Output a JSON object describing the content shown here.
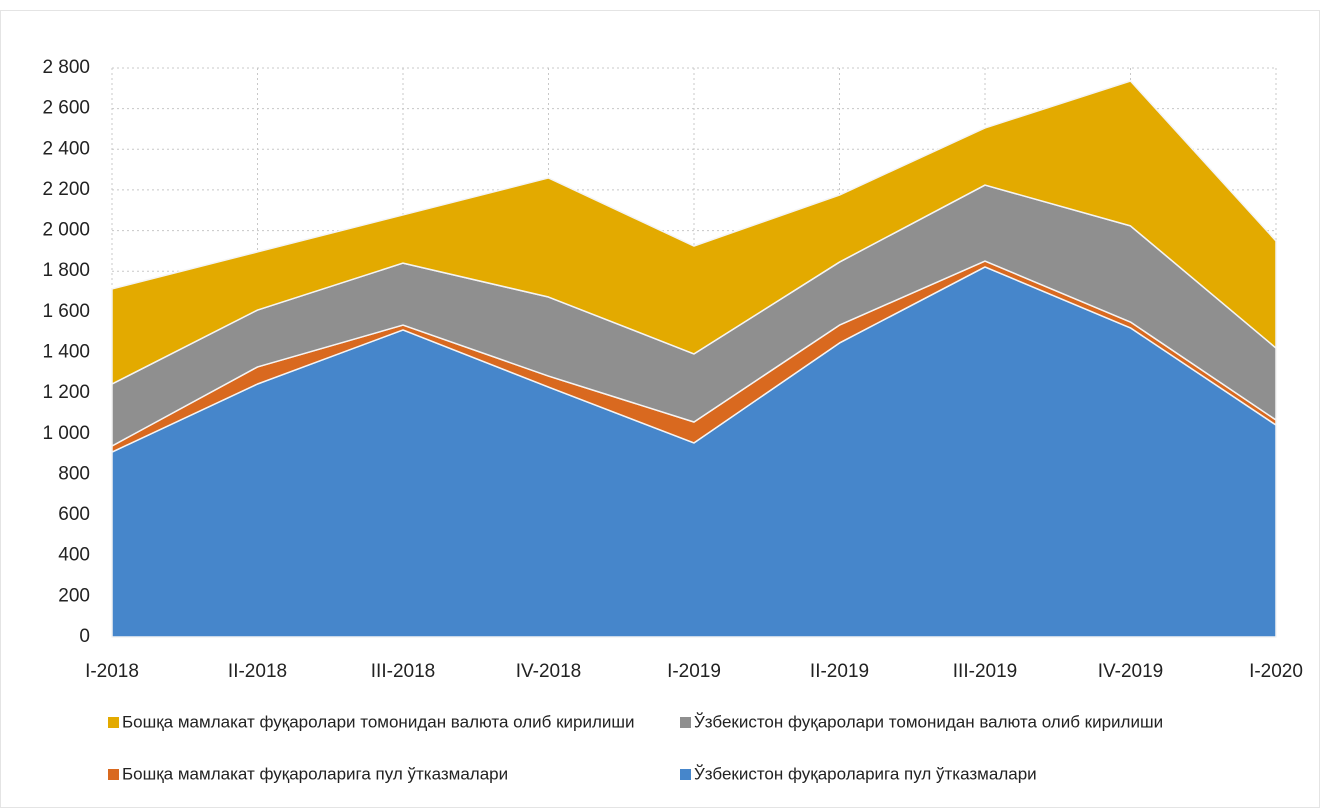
{
  "chart_data": {
    "type": "stacked_area",
    "categories": [
      "I-2018",
      "II-2018",
      "III-2018",
      "IV-2018",
      "I-2019",
      "II-2019",
      "III-2019",
      "IV-2019",
      "I-2020"
    ],
    "series": [
      {
        "name": "Ўзбекистон фуқароларига пул ўтказмалари",
        "color": "#4686cb",
        "values": [
          910,
          1245,
          1511,
          1230,
          955,
          1447,
          1821,
          1521,
          1043
        ]
      },
      {
        "name": "Бошқа мамлакат фуқароларига пул ўтказмалари",
        "color": "#d9691f",
        "values": [
          30,
          84,
          24,
          54,
          103,
          88,
          29,
          29,
          25
        ]
      },
      {
        "name": "Ўзбекистон фуқаролари томонидан валюта олиб кирилиши",
        "color": "#8f8f8f",
        "values": [
          305,
          280,
          305,
          389,
          335,
          310,
          374,
          473,
          354
        ]
      },
      {
        "name": "Бошқа мамлакат фуқаролари томонидан валюта олиб кирилиши",
        "color": "#e3aa00",
        "values": [
          468,
          286,
          237,
          586,
          531,
          330,
          281,
          713,
          527
        ]
      }
    ],
    "ylim": [
      0,
      2800
    ],
    "yticks": [
      0,
      200,
      400,
      600,
      800,
      {
        "value": 1000,
        "label": "1 000"
      },
      {
        "value": 1200,
        "label": "1 200"
      },
      {
        "value": 1400,
        "label": "1 400"
      },
      {
        "value": 1600,
        "label": "1 600"
      },
      {
        "value": 1800,
        "label": "1 800"
      },
      {
        "value": 2000,
        "label": "2 000"
      },
      {
        "value": 2200,
        "label": "2 200"
      },
      {
        "value": 2400,
        "label": "2 400"
      },
      {
        "value": 2600,
        "label": "2 600"
      },
      {
        "value": 2800,
        "label": "2 800"
      }
    ],
    "grid": true
  }
}
